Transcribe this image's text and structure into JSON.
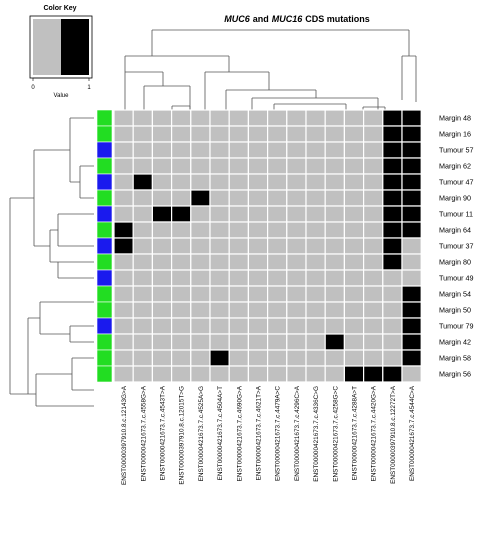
{
  "chart_data": {
    "type": "heatmap",
    "title": {
      "gene1": "MUC6",
      "conj": "and",
      "gene2": "MUC16",
      "rest": "CDS mutations"
    },
    "color_key": {
      "title": "Color Key",
      "xlabel": "Value",
      "ticks": [
        "0",
        "1"
      ],
      "colors": [
        "#c0c0c0",
        "#000000"
      ]
    },
    "row_side_colors": {
      "Margin": "#22dd22",
      "Tumour": "#1a1aee"
    },
    "columns": [
      "ENST00000397910.8.c.12143G>A",
      "ENST00000421673.7.c.4558G>A",
      "ENST00000421673.7.c.4543T>A",
      "ENST00000397910.8.c.12015T>G",
      "ENST00000421673.7.c.4525A>G",
      "ENST00000421673.7.c.4504A>T",
      "ENST00000421673.7.c.4690G>A",
      "ENST00000421673.7.c.4621T>A",
      "ENST00000421673.7.c.4479A>C",
      "ENST00000421673.7.c.4296C>A",
      "ENST00000421673.7.c.4336C>G",
      "ENST00000421673.7.c.4258G>C",
      "ENST00000421673.7.c.4288A>T",
      "ENST00000421673.7.c.4420G>A",
      "ENST00000397910.8.c.12272T>A",
      "ENST00000421673.7.c.4544C>A"
    ],
    "rows": [
      {
        "name": "Margin 48",
        "group": "Margin",
        "values": [
          0,
          0,
          0,
          0,
          0,
          0,
          0,
          0,
          0,
          0,
          0,
          0,
          0,
          0,
          1,
          1
        ]
      },
      {
        "name": "Margin 16",
        "group": "Margin",
        "values": [
          0,
          0,
          0,
          0,
          0,
          0,
          0,
          0,
          0,
          0,
          0,
          0,
          0,
          0,
          1,
          1
        ]
      },
      {
        "name": "Tumour 57",
        "group": "Tumour",
        "values": [
          0,
          0,
          0,
          0,
          0,
          0,
          0,
          0,
          0,
          0,
          0,
          0,
          0,
          0,
          1,
          1
        ]
      },
      {
        "name": "Margin 62",
        "group": "Margin",
        "values": [
          0,
          0,
          0,
          0,
          0,
          0,
          0,
          0,
          0,
          0,
          0,
          0,
          0,
          0,
          1,
          1
        ]
      },
      {
        "name": "Tumour 47",
        "group": "Tumour",
        "values": [
          0,
          1,
          0,
          0,
          0,
          0,
          0,
          0,
          0,
          0,
          0,
          0,
          0,
          0,
          1,
          1
        ]
      },
      {
        "name": "Margin 90",
        "group": "Margin",
        "values": [
          0,
          0,
          0,
          0,
          1,
          0,
          0,
          0,
          0,
          0,
          0,
          0,
          0,
          0,
          1,
          1
        ]
      },
      {
        "name": "Tumour 11",
        "group": "Tumour",
        "values": [
          0,
          0,
          1,
          1,
          0,
          0,
          0,
          0,
          0,
          0,
          0,
          0,
          0,
          0,
          1,
          1
        ]
      },
      {
        "name": "Margin 64",
        "group": "Margin",
        "values": [
          1,
          0,
          0,
          0,
          0,
          0,
          0,
          0,
          0,
          0,
          0,
          0,
          0,
          0,
          1,
          1
        ]
      },
      {
        "name": "Tumour 37",
        "group": "Tumour",
        "values": [
          1,
          0,
          0,
          0,
          0,
          0,
          0,
          0,
          0,
          0,
          0,
          0,
          0,
          0,
          1,
          0
        ]
      },
      {
        "name": "Margin 80",
        "group": "Margin",
        "values": [
          0,
          0,
          0,
          0,
          0,
          0,
          0,
          0,
          0,
          0,
          0,
          0,
          0,
          0,
          1,
          0
        ]
      },
      {
        "name": "Tumour 49",
        "group": "Tumour",
        "values": [
          0,
          0,
          0,
          0,
          0,
          0,
          0,
          0,
          0,
          0,
          0,
          0,
          0,
          0,
          0,
          0
        ]
      },
      {
        "name": "Margin 54",
        "group": "Margin",
        "values": [
          0,
          0,
          0,
          0,
          0,
          0,
          0,
          0,
          0,
          0,
          0,
          0,
          0,
          0,
          0,
          1
        ]
      },
      {
        "name": "Margin 50",
        "group": "Margin",
        "values": [
          0,
          0,
          0,
          0,
          0,
          0,
          0,
          0,
          0,
          0,
          0,
          0,
          0,
          0,
          0,
          1
        ]
      },
      {
        "name": "Tumour 79",
        "group": "Tumour",
        "values": [
          0,
          0,
          0,
          0,
          0,
          0,
          0,
          0,
          0,
          0,
          0,
          0,
          0,
          0,
          0,
          1
        ]
      },
      {
        "name": "Margin 42",
        "group": "Margin",
        "values": [
          0,
          0,
          0,
          0,
          0,
          0,
          0,
          0,
          0,
          0,
          0,
          1,
          0,
          0,
          0,
          1
        ]
      },
      {
        "name": "Margin 58",
        "group": "Margin",
        "values": [
          0,
          0,
          0,
          0,
          0,
          1,
          0,
          0,
          0,
          0,
          0,
          0,
          0,
          0,
          0,
          1
        ]
      },
      {
        "name": "Margin 56",
        "group": "Margin",
        "values": [
          0,
          0,
          0,
          0,
          0,
          0,
          0,
          0,
          0,
          0,
          0,
          0,
          1,
          1,
          1,
          0
        ]
      }
    ],
    "grid": true,
    "legend_position": "top-left"
  }
}
